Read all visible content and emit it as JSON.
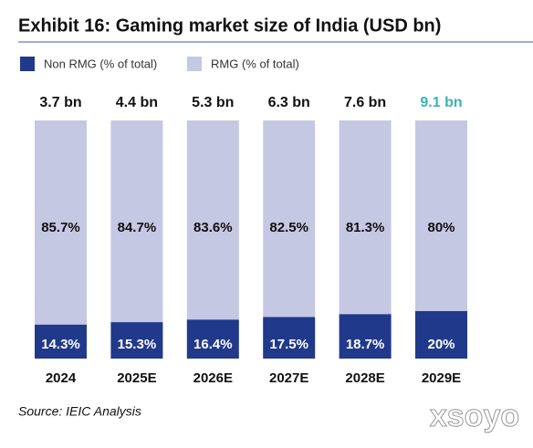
{
  "chart_data": {
    "type": "stacked_bar",
    "title": "Exhibit 16: Gaming market size of India (USD bn)",
    "categories": [
      "2024",
      "2025E",
      "2026E",
      "2027E",
      "2028E",
      "2029E"
    ],
    "series": [
      {
        "name": "Non RMG (% of total)",
        "color": "#21398a",
        "values": [
          14.3,
          15.3,
          16.4,
          17.5,
          18.7,
          20
        ],
        "value_labels": [
          "14.3%",
          "15.3%",
          "16.4%",
          "17.5%",
          "18.7%",
          "20%"
        ]
      },
      {
        "name": "RMG (% of total)",
        "color": "#c5c8e3",
        "values": [
          85.7,
          84.7,
          83.6,
          82.5,
          81.3,
          80
        ],
        "value_labels": [
          "85.7%",
          "84.7%",
          "83.6%",
          "82.5%",
          "81.3%",
          "80%"
        ]
      }
    ],
    "annotations": [
      "3.7 bn",
      "4.4 bn",
      "5.3 bn",
      "6.3 bn",
      "7.6 bn",
      "9.1 bn"
    ],
    "annotation_colors": [
      "#111111",
      "#111111",
      "#111111",
      "#111111",
      "#111111",
      "#3bb3b3"
    ],
    "ylim": [
      0,
      100
    ],
    "source": "Source: IEIC Analysis",
    "watermark": "xsoyo"
  }
}
